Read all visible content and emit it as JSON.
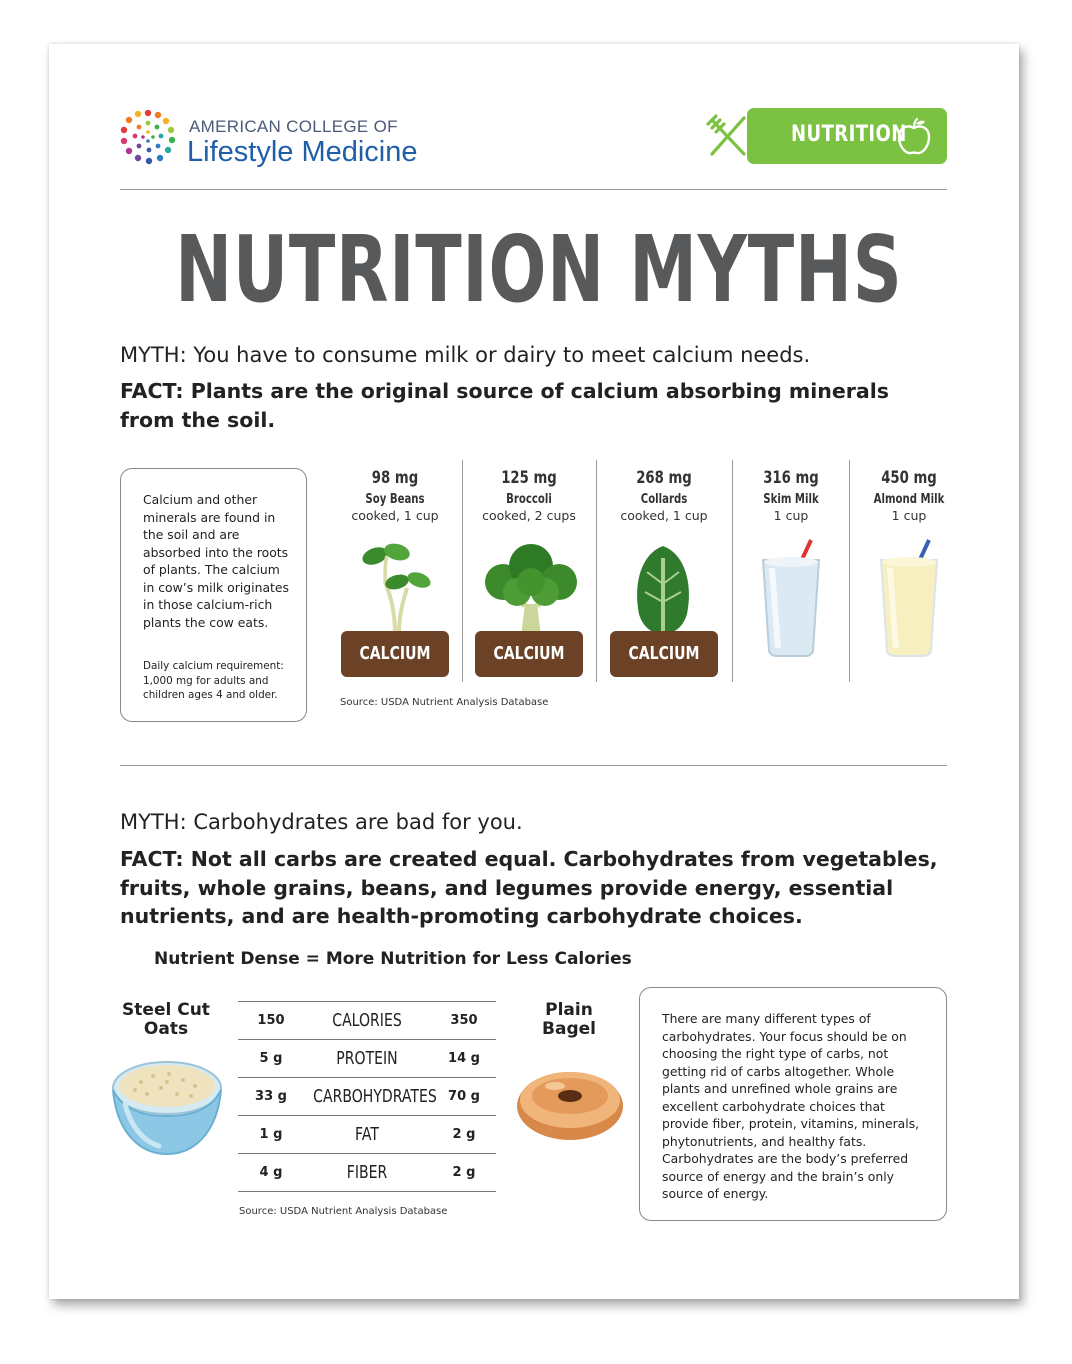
{
  "header": {
    "logo_line1": "AMERICAN COLLEGE OF",
    "logo_line2": "Lifestyle Medicine",
    "badge_label": "NUTRITION"
  },
  "title": "NUTRITION MYTHS",
  "section1": {
    "myth": "MYTH: You have to consume milk or dairy to meet calcium needs.",
    "fact_line1": "FACT: Plants are the original source of calcium absorbing minerals",
    "fact_line2": "from the soil.",
    "info_box": {
      "text": "Calcium and other minerals are found in the soil and are absorbed into the roots of plants. The calcium in cow’s milk originates in those calcium-rich plants the cow eats.",
      "small_text": "Daily calcium requirement: 1,000 mg for adults and children ages 4 and older."
    },
    "foods": [
      {
        "amount": "98 mg",
        "name": "Soy Beans",
        "portion": "cooked, 1 cup",
        "soil_label": "CALCIUM"
      },
      {
        "amount": "125 mg",
        "name": "Broccoli",
        "portion": "cooked, 2 cups",
        "soil_label": "CALCIUM"
      },
      {
        "amount": "268 mg",
        "name": "Collards",
        "portion": "cooked, 1 cup",
        "soil_label": "CALCIUM"
      },
      {
        "amount": "316 mg",
        "name": "Skim Milk",
        "portion": "1 cup"
      },
      {
        "amount": "450 mg",
        "name": "Almond Milk",
        "portion": "1 cup"
      }
    ],
    "source": "Source: USDA Nutrient Analysis Database"
  },
  "section2": {
    "myth": "MYTH: Carbohydrates are bad for you.",
    "fact_line1": "FACT: Not all carbs are created equal. Carbohydrates from vegetables,",
    "fact_line2": "fruits, whole grains, beans, and legumes provide energy, essential",
    "fact_line3": "nutrients, and are health-promoting carbohydrate choices.",
    "subhead": "Nutrient Dense = More Nutrition for Less Calories",
    "left_food_line1": "Steel Cut",
    "left_food_line2": "Oats",
    "right_food_line1": "Plain",
    "right_food_line2": "Bagel",
    "table": [
      {
        "oats": "150",
        "nutrient": "CALORIES",
        "bagel": "350"
      },
      {
        "oats": "5 g",
        "nutrient": "PROTEIN",
        "bagel": "14 g"
      },
      {
        "oats": "33 g",
        "nutrient": "CARBOHYDRATES",
        "bagel": "70 g"
      },
      {
        "oats": "1 g",
        "nutrient": "FAT",
        "bagel": "2 g"
      },
      {
        "oats": "4 g",
        "nutrient": "FIBER",
        "bagel": "2 g"
      }
    ],
    "source": "Source: USDA Nutrient Analysis Database",
    "info_box": "There are many different types of carbohydrates. Your focus should be on choosing the right type of carbs, not getting rid of carbs altogether. Whole plants and unrefined whole grains are excellent carbohydrate choices that provide fiber, protein, vitamins, minerals, phytonutrients, and healthy fats. Carbohydrates are the body’s preferred source of energy and the brain’s only source of energy."
  },
  "colors": {
    "brand_green": "#7cc242",
    "title_gray": "#58595b",
    "soil_brown": "#6b4226",
    "logo_blue": "#1f5fa8"
  }
}
